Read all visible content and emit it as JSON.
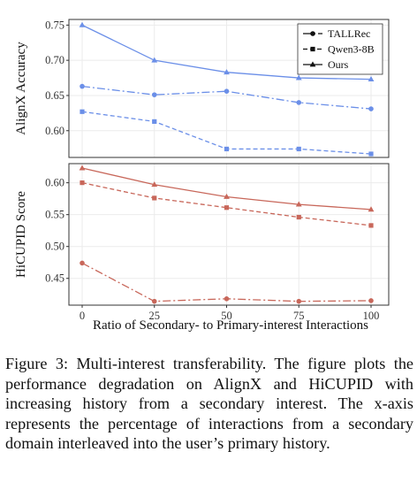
{
  "chart_data": [
    {
      "type": "line",
      "ylabel": "AlignX Accuracy",
      "x": [
        0,
        25,
        50,
        75,
        100
      ],
      "ylim": [
        0.562,
        0.758
      ],
      "yticks": [
        0.6,
        0.65,
        0.7,
        0.75
      ],
      "color": "#6b8fe8",
      "series": [
        {
          "name": "TALLRec",
          "values": [
            0.663,
            0.651,
            0.656,
            0.64,
            0.631
          ]
        },
        {
          "name": "Qwen3-8B",
          "values": [
            0.627,
            0.613,
            0.574,
            0.574,
            0.567
          ]
        },
        {
          "name": "Ours",
          "values": [
            0.75,
            0.7,
            0.683,
            0.675,
            0.673
          ]
        }
      ],
      "legend": "top-right"
    },
    {
      "type": "line",
      "ylabel": "HiCUPID Score",
      "xlabel": "Ratio of  Secondary- to Primary-interest Interactions",
      "x": [
        0,
        25,
        50,
        75,
        100
      ],
      "xticks": [
        "0",
        "25",
        "50",
        "75",
        "100"
      ],
      "ylim": [
        0.408,
        0.63
      ],
      "yticks": [
        0.45,
        0.5,
        0.55,
        0.6
      ],
      "color": "#c8675a",
      "series": [
        {
          "name": "TALLRec",
          "values": [
            0.474,
            0.414,
            0.418,
            0.414,
            0.415
          ]
        },
        {
          "name": "Qwen3-8B",
          "values": [
            0.6,
            0.576,
            0.561,
            0.546,
            0.533
          ]
        },
        {
          "name": "Ours",
          "values": [
            0.623,
            0.597,
            0.578,
            0.566,
            0.558
          ]
        }
      ]
    }
  ],
  "caption": "Figure 3: Multi-interest transferability. The figure plots the performance degradation on AlignX and HiCUPID with increasing history from a secondary interest. The x-axis represents the percentage of interactions from a secondary domain interleaved into the user’s primary history."
}
